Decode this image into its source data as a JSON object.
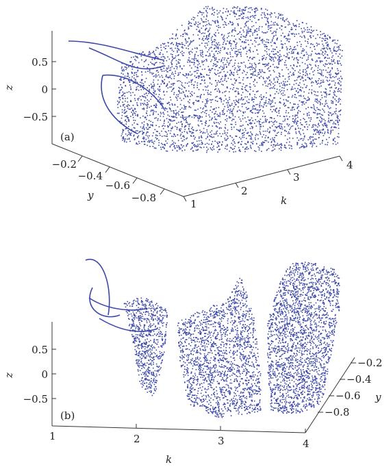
{
  "chart_data": [
    {
      "panel": "(a)",
      "type": "scatter",
      "title": "",
      "xlabel": "k",
      "ylabel": "y",
      "zlabel": "z",
      "k_ticks": [
        "1",
        "2",
        "3",
        "4"
      ],
      "y_ticks": [
        "−0.2",
        "−0.4",
        "−0.6",
        "−0.8"
      ],
      "z_ticks": [
        "0.5",
        "0",
        "−0.5"
      ],
      "klim": [
        1,
        4
      ],
      "ylim": [
        -0.9,
        -0.15
      ],
      "zlim": [
        -0.9,
        0.9
      ],
      "color": "#3a47a8",
      "view": "perspective, k axis receding right"
    },
    {
      "panel": "(b)",
      "type": "scatter",
      "title": "",
      "xlabel": "k",
      "ylabel": "y",
      "zlabel": "z",
      "k_ticks": [
        "1",
        "2",
        "3",
        "4"
      ],
      "y_ticks": [
        "−0.2",
        "−0.4",
        "−0.6",
        "−0.8"
      ],
      "z_ticks": [
        "0.5",
        "0",
        "−0.5"
      ],
      "klim": [
        1,
        4
      ],
      "ylim": [
        -0.9,
        -0.15
      ],
      "zlim": [
        -0.9,
        0.9
      ],
      "color": "#3a47a8",
      "view": "front, k axis horizontal"
    }
  ]
}
